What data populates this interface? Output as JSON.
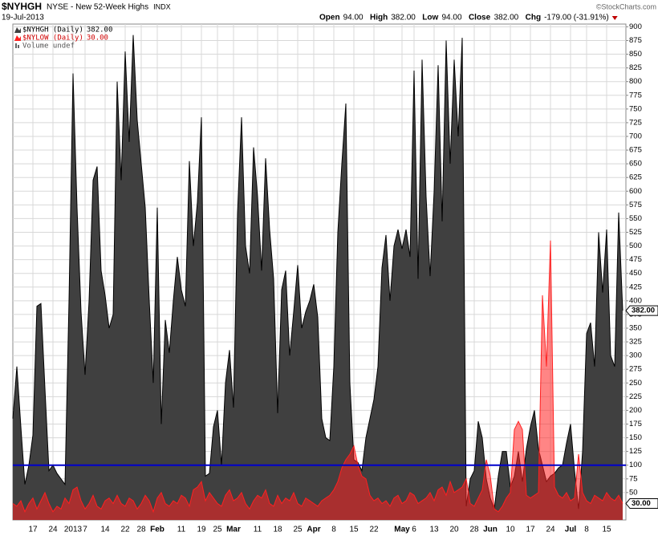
{
  "header": {
    "symbol": "$NYHGH",
    "description": "NYSE - New 52-Week Highs",
    "exchange": "INDX",
    "date": "19-Jul-2013",
    "quote": [
      {
        "label": "Open",
        "value": "94.00"
      },
      {
        "label": "High",
        "value": "382.00"
      },
      {
        "label": "Low",
        "value": "94.00"
      },
      {
        "label": "Close",
        "value": "382.00"
      },
      {
        "label": "Chg",
        "value": "-179.00 (-31.91%)"
      }
    ],
    "watermark": "©StockCharts.com"
  },
  "chart_data": {
    "type": "area",
    "categories": [
      null,
      null,
      null,
      null,
      null,
      "17",
      null,
      null,
      null,
      null,
      "24",
      null,
      null,
      null,
      null,
      "2013",
      null,
      null,
      "7",
      null,
      null,
      null,
      null,
      "14",
      null,
      null,
      null,
      null,
      "22",
      null,
      null,
      null,
      "28",
      null,
      null,
      null,
      "Feb",
      null,
      null,
      null,
      null,
      null,
      "11",
      null,
      null,
      null,
      null,
      "19",
      null,
      null,
      null,
      "25",
      null,
      null,
      null,
      "Mar",
      null,
      null,
      null,
      null,
      null,
      "11",
      null,
      null,
      null,
      null,
      "18",
      null,
      null,
      null,
      null,
      "25",
      null,
      null,
      null,
      "Apr",
      null,
      null,
      null,
      null,
      "8",
      null,
      null,
      null,
      null,
      "15",
      null,
      null,
      null,
      null,
      "22",
      null,
      null,
      null,
      null,
      null,
      null,
      "May",
      null,
      null,
      "6",
      null,
      null,
      null,
      null,
      "13",
      null,
      null,
      null,
      null,
      "20",
      null,
      null,
      null,
      null,
      "28",
      null,
      null,
      null,
      "Jun",
      null,
      null,
      null,
      null,
      "10",
      null,
      null,
      null,
      null,
      "17",
      null,
      null,
      null,
      null,
      "24",
      null,
      null,
      null,
      null,
      "Jul",
      null,
      null,
      null,
      "8",
      null,
      null,
      null,
      null,
      "15",
      null,
      null,
      null,
      null
    ],
    "series": [
      {
        "name": "$NYHGH (Daily)",
        "last_label": "382.00",
        "color": "#404040",
        "values": [
          185,
          280,
          170,
          65,
          100,
          155,
          390,
          395,
          240,
          90,
          100,
          85,
          75,
          65,
          400,
          815,
          570,
          380,
          265,
          400,
          620,
          645,
          455,
          410,
          350,
          375,
          800,
          620,
          855,
          690,
          885,
          730,
          650,
          570,
          400,
          250,
          570,
          175,
          365,
          305,
          400,
          480,
          420,
          390,
          655,
          500,
          580,
          735,
          80,
          85,
          170,
          200,
          100,
          250,
          310,
          205,
          560,
          735,
          500,
          450,
          680,
          590,
          455,
          660,
          530,
          440,
          195,
          420,
          455,
          300,
          380,
          465,
          350,
          380,
          400,
          430,
          370,
          185,
          150,
          145,
          280,
          525,
          650,
          760,
          250,
          110,
          105,
          90,
          150,
          185,
          220,
          280,
          460,
          520,
          400,
          500,
          530,
          495,
          530,
          480,
          820,
          440,
          840,
          590,
          445,
          600,
          830,
          545,
          875,
          650,
          840,
          700,
          880,
          25,
          75,
          90,
          180,
          150,
          75,
          40,
          20,
          80,
          125,
          125,
          60,
          80,
          125,
          70,
          130,
          170,
          200,
          130,
          100,
          70,
          80,
          85,
          95,
          100,
          140,
          175,
          90,
          20,
          125,
          340,
          360,
          280,
          525,
          415,
          530,
          300,
          280,
          561,
          382
        ]
      },
      {
        "name": "$NYLOW (Daily)",
        "last_label": "30.00",
        "color": "#ff2020",
        "values": [
          30,
          25,
          35,
          15,
          30,
          40,
          20,
          35,
          50,
          30,
          15,
          25,
          20,
          40,
          30,
          55,
          60,
          35,
          20,
          30,
          45,
          25,
          20,
          35,
          40,
          30,
          45,
          30,
          25,
          40,
          35,
          20,
          30,
          45,
          35,
          15,
          40,
          50,
          30,
          25,
          35,
          30,
          45,
          40,
          25,
          55,
          60,
          70,
          35,
          50,
          40,
          30,
          25,
          45,
          55,
          35,
          40,
          50,
          30,
          20,
          35,
          45,
          40,
          55,
          30,
          25,
          45,
          30,
          40,
          35,
          50,
          30,
          25,
          40,
          35,
          30,
          25,
          35,
          40,
          45,
          55,
          70,
          95,
          110,
          120,
          135,
          100,
          80,
          75,
          45,
          35,
          40,
          30,
          35,
          25,
          40,
          45,
          30,
          35,
          50,
          45,
          30,
          35,
          40,
          50,
          35,
          55,
          60,
          45,
          70,
          50,
          55,
          60,
          75,
          30,
          25,
          40,
          55,
          110,
          80,
          20,
          15,
          25,
          40,
          50,
          165,
          180,
          165,
          45,
          40,
          45,
          50,
          410,
          280,
          510,
          60,
          45,
          40,
          50,
          35,
          40,
          120,
          50,
          35,
          30,
          45,
          40,
          35,
          50,
          40,
          35,
          45,
          30
        ]
      }
    ],
    "legend_extra": "Volume undef",
    "legend": "top-left",
    "reference_line": {
      "value": 100,
      "color": "#0000cc"
    },
    "ylim": [
      0,
      905
    ],
    "yticks": [
      50,
      75,
      100,
      125,
      150,
      175,
      200,
      225,
      250,
      275,
      300,
      325,
      350,
      375,
      400,
      425,
      450,
      475,
      500,
      525,
      550,
      575,
      600,
      625,
      650,
      675,
      700,
      725,
      750,
      775,
      800,
      825,
      850,
      875,
      900
    ],
    "grid": true
  }
}
